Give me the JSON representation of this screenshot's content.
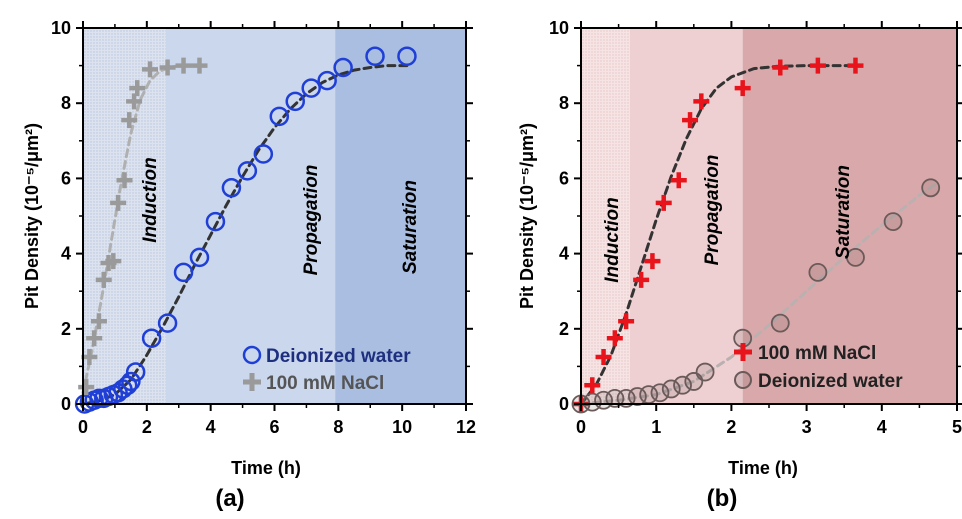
{
  "chart_data": [
    {
      "type": "scatter",
      "panel_label": "(a)",
      "xlabel": "Time (h)",
      "ylabel": "Pit Density (10⁻⁵/μm²)",
      "xlim": [
        0,
        12
      ],
      "ylim": [
        0,
        10
      ],
      "xticks": [
        "0",
        "2",
        "4",
        "6",
        "8",
        "10",
        "12"
      ],
      "yticks": [
        "0",
        "2",
        "4",
        "6",
        "8",
        "10"
      ],
      "phases": [
        {
          "label": "Induction",
          "x_from": 0,
          "x_to": 2.6,
          "color": "#dce3ef",
          "hatched": true
        },
        {
          "label": "Propagation",
          "x_from": 2.6,
          "x_to": 7.9,
          "color": "#cad7ec",
          "hatched": false
        },
        {
          "label": "Saturation",
          "x_from": 7.9,
          "x_to": 12,
          "color": "#a9bee0",
          "hatched": false
        }
      ],
      "legend": {
        "position": "bottom-right",
        "entries": [
          "Deionized water",
          "100 mM NaCl"
        ]
      },
      "series": [
        {
          "name": "Deionized water",
          "marker": "circle",
          "color": "#1f3fd6",
          "text_color": "#1f2f80",
          "x": [
            0.05,
            0.2,
            0.35,
            0.5,
            0.65,
            0.8,
            0.95,
            1.1,
            1.25,
            1.4,
            1.5,
            1.65,
            2.15,
            2.65,
            3.15,
            3.65,
            4.15,
            4.65,
            5.15,
            5.65,
            6.15,
            6.65,
            7.15,
            7.65,
            8.15,
            9.15,
            10.15
          ],
          "y": [
            0.0,
            0.05,
            0.1,
            0.15,
            0.15,
            0.2,
            0.25,
            0.3,
            0.4,
            0.5,
            0.6,
            0.85,
            1.75,
            2.15,
            3.5,
            3.9,
            4.85,
            5.75,
            6.2,
            6.65,
            7.65,
            8.05,
            8.4,
            8.6,
            8.95,
            9.25,
            9.25
          ]
        },
        {
          "name": "100 mM NaCl",
          "marker": "plus",
          "color": "#9a9a9a",
          "text_color": "#555555",
          "x": [
            0.1,
            0.2,
            0.35,
            0.5,
            0.65,
            0.8,
            0.95,
            1.1,
            1.3,
            1.45,
            1.6,
            1.7,
            2.1,
            2.65,
            3.15,
            3.65
          ],
          "y": [
            0.45,
            1.25,
            1.75,
            2.2,
            3.3,
            3.75,
            3.8,
            5.35,
            5.95,
            7.55,
            8.05,
            8.4,
            8.9,
            8.95,
            9.0,
            9.0
          ]
        }
      ],
      "fits": [
        {
          "series": "100 mM NaCl",
          "color": "#b0b0b0",
          "x": [
            0,
            0.3,
            0.6,
            0.9,
            1.2,
            1.5,
            1.8,
            2.1,
            2.4,
            2.7,
            3.0,
            3.3
          ],
          "y": [
            0.3,
            1.5,
            2.9,
            4.4,
            5.9,
            7.2,
            8.1,
            8.6,
            8.85,
            8.95,
            9.0,
            9.0
          ]
        },
        {
          "series": "Deionized water",
          "color": "#333333",
          "x": [
            0,
            0.5,
            1.0,
            1.5,
            2.0,
            2.5,
            3.0,
            3.5,
            4.0,
            4.5,
            5.0,
            5.5,
            6.0,
            6.5,
            7.0,
            7.5,
            8.0,
            8.5,
            9.0,
            9.5,
            10.0,
            10.3
          ],
          "y": [
            0.0,
            0.08,
            0.25,
            0.65,
            1.3,
            2.05,
            2.85,
            3.7,
            4.5,
            5.3,
            6.05,
            6.75,
            7.35,
            7.85,
            8.25,
            8.55,
            8.75,
            8.88,
            8.95,
            9.0,
            9.0,
            9.0
          ]
        }
      ]
    },
    {
      "type": "scatter",
      "panel_label": "(b)",
      "xlabel": "Time (h)",
      "ylabel": "Pit Density (10⁻⁵/μm²)",
      "xlim": [
        0,
        5
      ],
      "ylim": [
        0,
        10
      ],
      "xticks": [
        "0",
        "1",
        "2",
        "3",
        "4",
        "5"
      ],
      "yticks": [
        "0",
        "2",
        "4",
        "6",
        "8",
        "10"
      ],
      "phases": [
        {
          "label": "Induction",
          "x_from": 0,
          "x_to": 0.65,
          "color": "#f6e4e4",
          "hatched": true
        },
        {
          "label": "Propagation",
          "x_from": 0.65,
          "x_to": 2.15,
          "color": "#eed0d2",
          "hatched": false
        },
        {
          "label": "Saturation",
          "x_from": 2.15,
          "x_to": 5,
          "color": "#d9a8aa",
          "hatched": false
        }
      ],
      "legend": {
        "position": "bottom-right",
        "entries": [
          "100 mM NaCl",
          "Deionized water"
        ]
      },
      "series": [
        {
          "name": "100 mM NaCl",
          "marker": "plus",
          "color": "#e8141c",
          "text_color": "#222222",
          "x": [
            0.0,
            0.15,
            0.3,
            0.45,
            0.6,
            0.8,
            0.95,
            1.1,
            1.3,
            1.45,
            1.6,
            2.15,
            2.65,
            3.15,
            3.65
          ],
          "y": [
            0.0,
            0.5,
            1.25,
            1.75,
            2.2,
            3.3,
            3.8,
            5.35,
            5.95,
            7.55,
            8.05,
            8.4,
            8.95,
            9.0,
            9.0
          ]
        },
        {
          "name": "Deionized water",
          "marker": "circle",
          "color": "#6b5a5a",
          "text_color": "#222222",
          "x": [
            0.0,
            0.15,
            0.3,
            0.45,
            0.6,
            0.75,
            0.9,
            1.05,
            1.2,
            1.35,
            1.5,
            1.65,
            2.15,
            2.65,
            3.15,
            3.65,
            4.15,
            4.65
          ],
          "y": [
            0.0,
            0.05,
            0.1,
            0.15,
            0.15,
            0.2,
            0.25,
            0.3,
            0.4,
            0.5,
            0.6,
            0.85,
            1.75,
            2.15,
            3.5,
            3.9,
            4.85,
            5.75
          ]
        }
      ],
      "fits": [
        {
          "series": "Deionized water",
          "color": "#bbb0b0",
          "x": [
            0,
            0.5,
            1.0,
            1.5,
            2.0,
            2.5,
            3.0,
            3.5,
            4.0,
            4.5,
            4.75
          ],
          "y": [
            0.0,
            0.1,
            0.25,
            0.6,
            1.25,
            2.1,
            3.0,
            3.9,
            4.75,
            5.55,
            5.9
          ]
        },
        {
          "series": "100 mM NaCl",
          "color": "#333333",
          "x": [
            0,
            0.2,
            0.4,
            0.6,
            0.8,
            1.0,
            1.2,
            1.4,
            1.6,
            1.8,
            2.0,
            2.3,
            2.6,
            3.0,
            3.4,
            3.7
          ],
          "y": [
            0.0,
            0.5,
            1.3,
            2.4,
            3.65,
            4.9,
            6.05,
            7.05,
            7.85,
            8.4,
            8.7,
            8.92,
            8.98,
            9.0,
            9.0,
            9.0
          ]
        }
      ]
    }
  ]
}
